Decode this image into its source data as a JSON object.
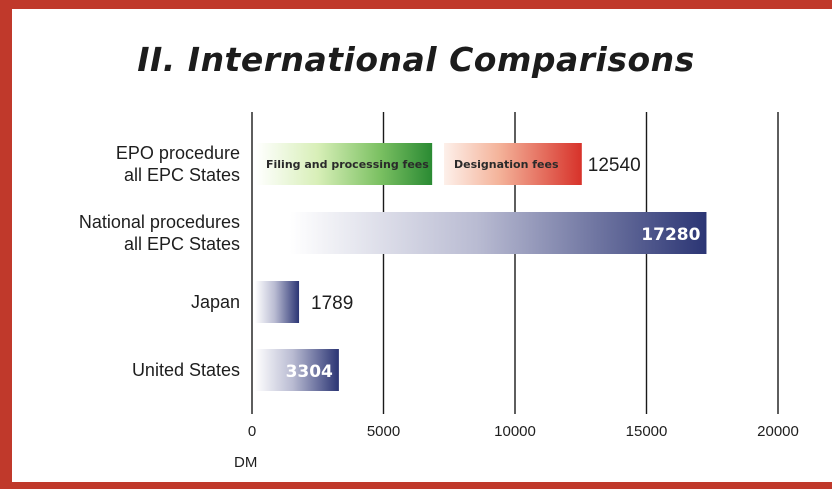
{
  "title": "II. International Comparisons",
  "chart_data": {
    "type": "bar",
    "orientation": "horizontal",
    "title": "II. International Comparisons",
    "xlabel": "DM",
    "xlim": [
      0,
      20000
    ],
    "xticks": [
      0,
      5000,
      10000,
      15000,
      20000
    ],
    "xtick_labels": [
      "0",
      "5000",
      "10000",
      "15000",
      "20000"
    ],
    "grid": true,
    "categories": [
      [
        "EPO procedure",
        "all EPC States"
      ],
      [
        "National procedures",
        "all EPC States"
      ],
      [
        "Japan"
      ],
      [
        "United States"
      ]
    ],
    "values": [
      12540,
      17280,
      1789,
      3304
    ],
    "value_labels": [
      "12540",
      "17280",
      "1789",
      "3304"
    ],
    "segments": [
      {
        "label": "Filing and processing fees",
        "start": 0,
        "end": 6850,
        "color": "#2e8b2e"
      },
      {
        "label": "Designation fees",
        "start": 7300,
        "end": 12540,
        "color": "#d9362b"
      }
    ],
    "bar_color": "#2f3a78"
  }
}
